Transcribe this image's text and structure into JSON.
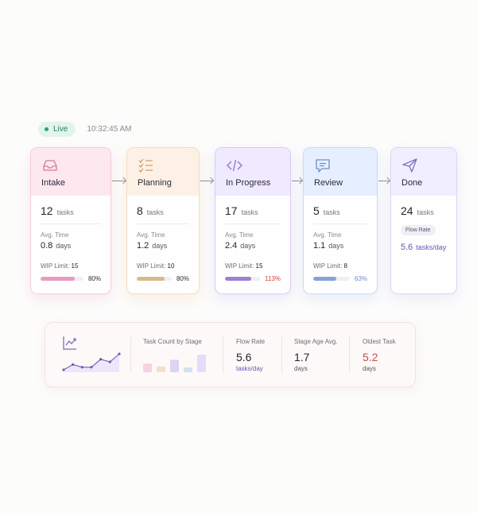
{
  "status": {
    "live_label": "Live",
    "time": "10:32:45 AM"
  },
  "stages": [
    {
      "id": "intake",
      "title": "Intake",
      "icon": "inbox-icon",
      "count": "12",
      "count_unit": "tasks",
      "avg_label": "Avg. Time",
      "avg_value": "0.8",
      "avg_unit": "days",
      "wip_label": "WIP Limit:",
      "wip_value": "15",
      "wip_pct": "80%",
      "wip_fill": 0.8,
      "accent": "#e89ac0",
      "head_bg": "#fde8f0",
      "border": "#f6cbdc"
    },
    {
      "id": "planning",
      "title": "Planning",
      "icon": "checklist-icon",
      "count": "8",
      "count_unit": "tasks",
      "avg_label": "Avg. Time",
      "avg_value": "1.2",
      "avg_unit": "days",
      "wip_label": "WIP Limit:",
      "wip_value": "10",
      "wip_pct": "80%",
      "wip_fill": 0.8,
      "accent": "#d8b98e",
      "head_bg": "#fdf1e6",
      "border": "#f4dcc3"
    },
    {
      "id": "in-progress",
      "title": "In Progress",
      "icon": "code-icon",
      "count": "17",
      "count_unit": "tasks",
      "avg_label": "Avg. Time",
      "avg_value": "2.4",
      "avg_unit": "days",
      "wip_label": "WIP Limit:",
      "wip_value": "15",
      "wip_pct": "113%",
      "wip_fill": 0.75,
      "accent": "#9a82cf",
      "head_bg": "#efeaff",
      "border": "#d8ccf5",
      "pct_color": "#d0443e"
    },
    {
      "id": "review",
      "title": "Review",
      "icon": "comment-icon",
      "count": "5",
      "count_unit": "tasks",
      "avg_label": "Avg. Time",
      "avg_value": "1.1",
      "avg_unit": "days",
      "wip_label": "WIP Limit:",
      "wip_value": "8",
      "wip_pct": "63%",
      "wip_fill": 0.63,
      "accent": "#82a4d8",
      "head_bg": "#e6efff",
      "border": "#c9d9f3",
      "pct_color": "#6c8fc9"
    },
    {
      "id": "done",
      "title": "Done",
      "icon": "paper-plane-icon",
      "count": "24",
      "count_unit": "tasks",
      "flow_label": "Flow Rate",
      "flow_value": "5.6",
      "flow_unit": "tasks/day",
      "accent": "#8b7cc6",
      "head_bg": "#f1eeff",
      "border": "#dcd5f5"
    }
  ],
  "summary": {
    "trend_icon": "line-chart-icon",
    "sparkline": [
      3,
      5,
      4,
      4,
      7,
      6,
      9
    ],
    "task_count_label": "Task Count by Stage",
    "task_counts": [
      12,
      8,
      17,
      5,
      24
    ],
    "flow_rate_label": "Flow Rate",
    "flow_rate_value": "5.6",
    "flow_rate_unit": "tasks/day",
    "stage_age_label": "Stage Age Avg.",
    "stage_age_value": "1.7",
    "stage_age_unit": "days",
    "oldest_label": "Oldest Task",
    "oldest_value": "5.2",
    "oldest_unit": "days"
  },
  "colors": {
    "flow": "#6a55b0",
    "warning": "#c0504a",
    "live": "#2ea36b"
  }
}
